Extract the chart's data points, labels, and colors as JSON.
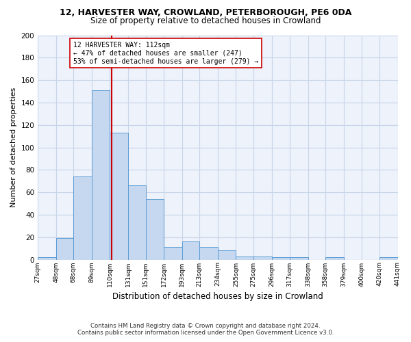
{
  "title1": "12, HARVESTER WAY, CROWLAND, PETERBOROUGH, PE6 0DA",
  "title2": "Size of property relative to detached houses in Crowland",
  "xlabel": "Distribution of detached houses by size in Crowland",
  "ylabel": "Number of detached properties",
  "footnote1": "Contains HM Land Registry data © Crown copyright and database right 2024.",
  "footnote2": "Contains public sector information licensed under the Open Government Licence v3.0.",
  "bins": [
    27,
    48,
    68,
    89,
    110,
    131,
    151,
    172,
    193,
    213,
    234,
    255,
    275,
    296,
    317,
    338,
    358,
    379,
    400,
    420,
    441
  ],
  "counts": [
    2,
    19,
    74,
    151,
    113,
    66,
    54,
    11,
    16,
    11,
    8,
    3,
    3,
    2,
    2,
    0,
    2,
    0,
    0,
    2
  ],
  "bar_color": "#c5d8f0",
  "bar_edge_color": "#5b9bd5",
  "grid_color": "#c8d4e8",
  "bg_color": "#edf2fb",
  "vline_x": 112,
  "vline_color": "#cc0000",
  "annotation_text": "12 HARVESTER WAY: 112sqm\n← 47% of detached houses are smaller (247)\n53% of semi-detached houses are larger (279) →",
  "annotation_box_color": "#ffffff",
  "annotation_box_edge": "#cc0000",
  "ylim": [
    0,
    200
  ],
  "yticks": [
    0,
    20,
    40,
    60,
    80,
    100,
    120,
    140,
    160,
    180,
    200
  ]
}
